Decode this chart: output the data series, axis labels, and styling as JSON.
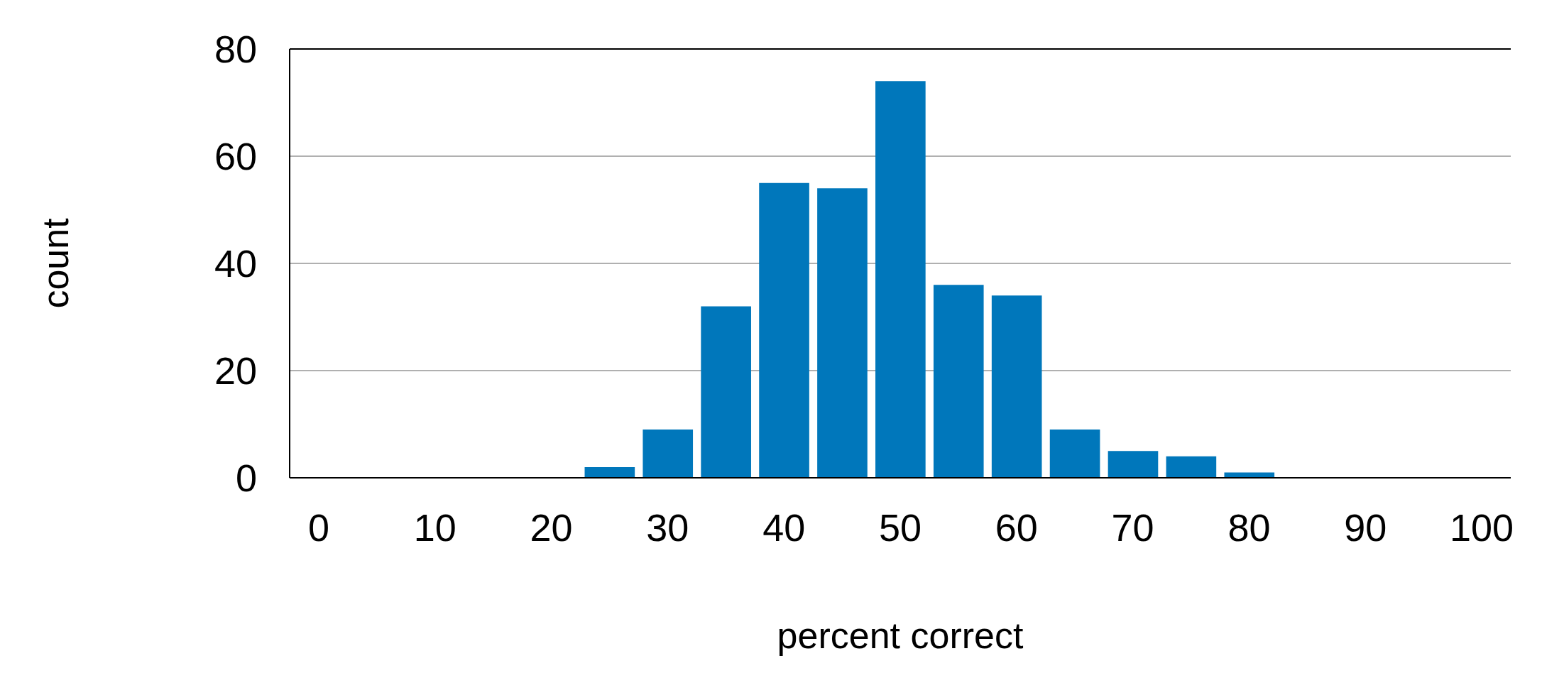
{
  "chart_data": {
    "type": "histogram",
    "xlabel": "percent correct",
    "ylabel": "count",
    "bins": [
      22.5,
      27.5,
      32.5,
      37.5,
      42.5,
      47.5,
      52.5,
      57.5,
      62.5,
      67.5,
      72.5,
      77.5,
      82.5
    ],
    "values": [
      2,
      9,
      32,
      55,
      54,
      74,
      36,
      34,
      9,
      5,
      4,
      1
    ],
    "color": "#0077bb",
    "xlim": [
      -2.5,
      102.5
    ],
    "xticks": [
      0,
      10,
      20,
      30,
      40,
      50,
      60,
      70,
      80,
      90,
      100
    ],
    "ylim": [
      0,
      80
    ],
    "yticks": [
      0,
      20,
      40,
      60,
      80
    ],
    "grid": "y"
  }
}
